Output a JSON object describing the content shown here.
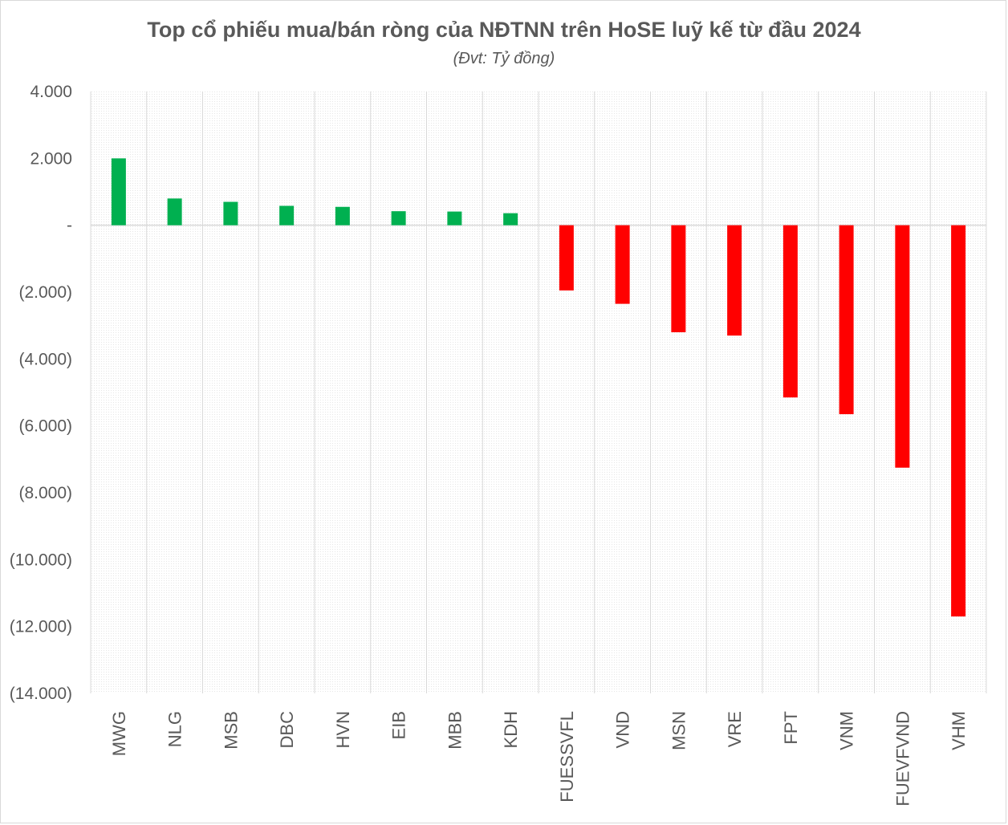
{
  "chart_data": {
    "type": "bar",
    "title": "Top cổ phiếu mua/bán ròng của NĐTNN trên HoSE luỹ kế từ đầu 2024",
    "subtitle": "(Đvt: Tỷ đồng)",
    "xlabel": "",
    "ylabel": "",
    "ylim": [
      -14000,
      4000
    ],
    "yticks": [
      4000,
      2000,
      0,
      -2000,
      -4000,
      -6000,
      -8000,
      -10000,
      -12000,
      -14000
    ],
    "ytick_labels": [
      "4.000",
      "2.000",
      "-",
      "(2.000)",
      "(4.000)",
      "(6.000)",
      "(8.000)",
      "(10.000)",
      "(12.000)",
      "(14.000)"
    ],
    "categories": [
      "MWG",
      "NLG",
      "MSB",
      "DBC",
      "HVN",
      "EIB",
      "MBB",
      "KDH",
      "FUESSVFL",
      "VND",
      "MSN",
      "VRE",
      "FPT",
      "VNM",
      "FUEVFVND",
      "VHM"
    ],
    "values": [
      2000,
      800,
      700,
      580,
      550,
      420,
      410,
      360,
      -1950,
      -2350,
      -3200,
      -3300,
      -5150,
      -5650,
      -7250,
      -11700
    ],
    "grid": true,
    "legend": "none",
    "colors": {
      "positive": "#00b050",
      "negative": "#ff0000",
      "grid": "#d9d9d9",
      "text": "#595959"
    }
  }
}
